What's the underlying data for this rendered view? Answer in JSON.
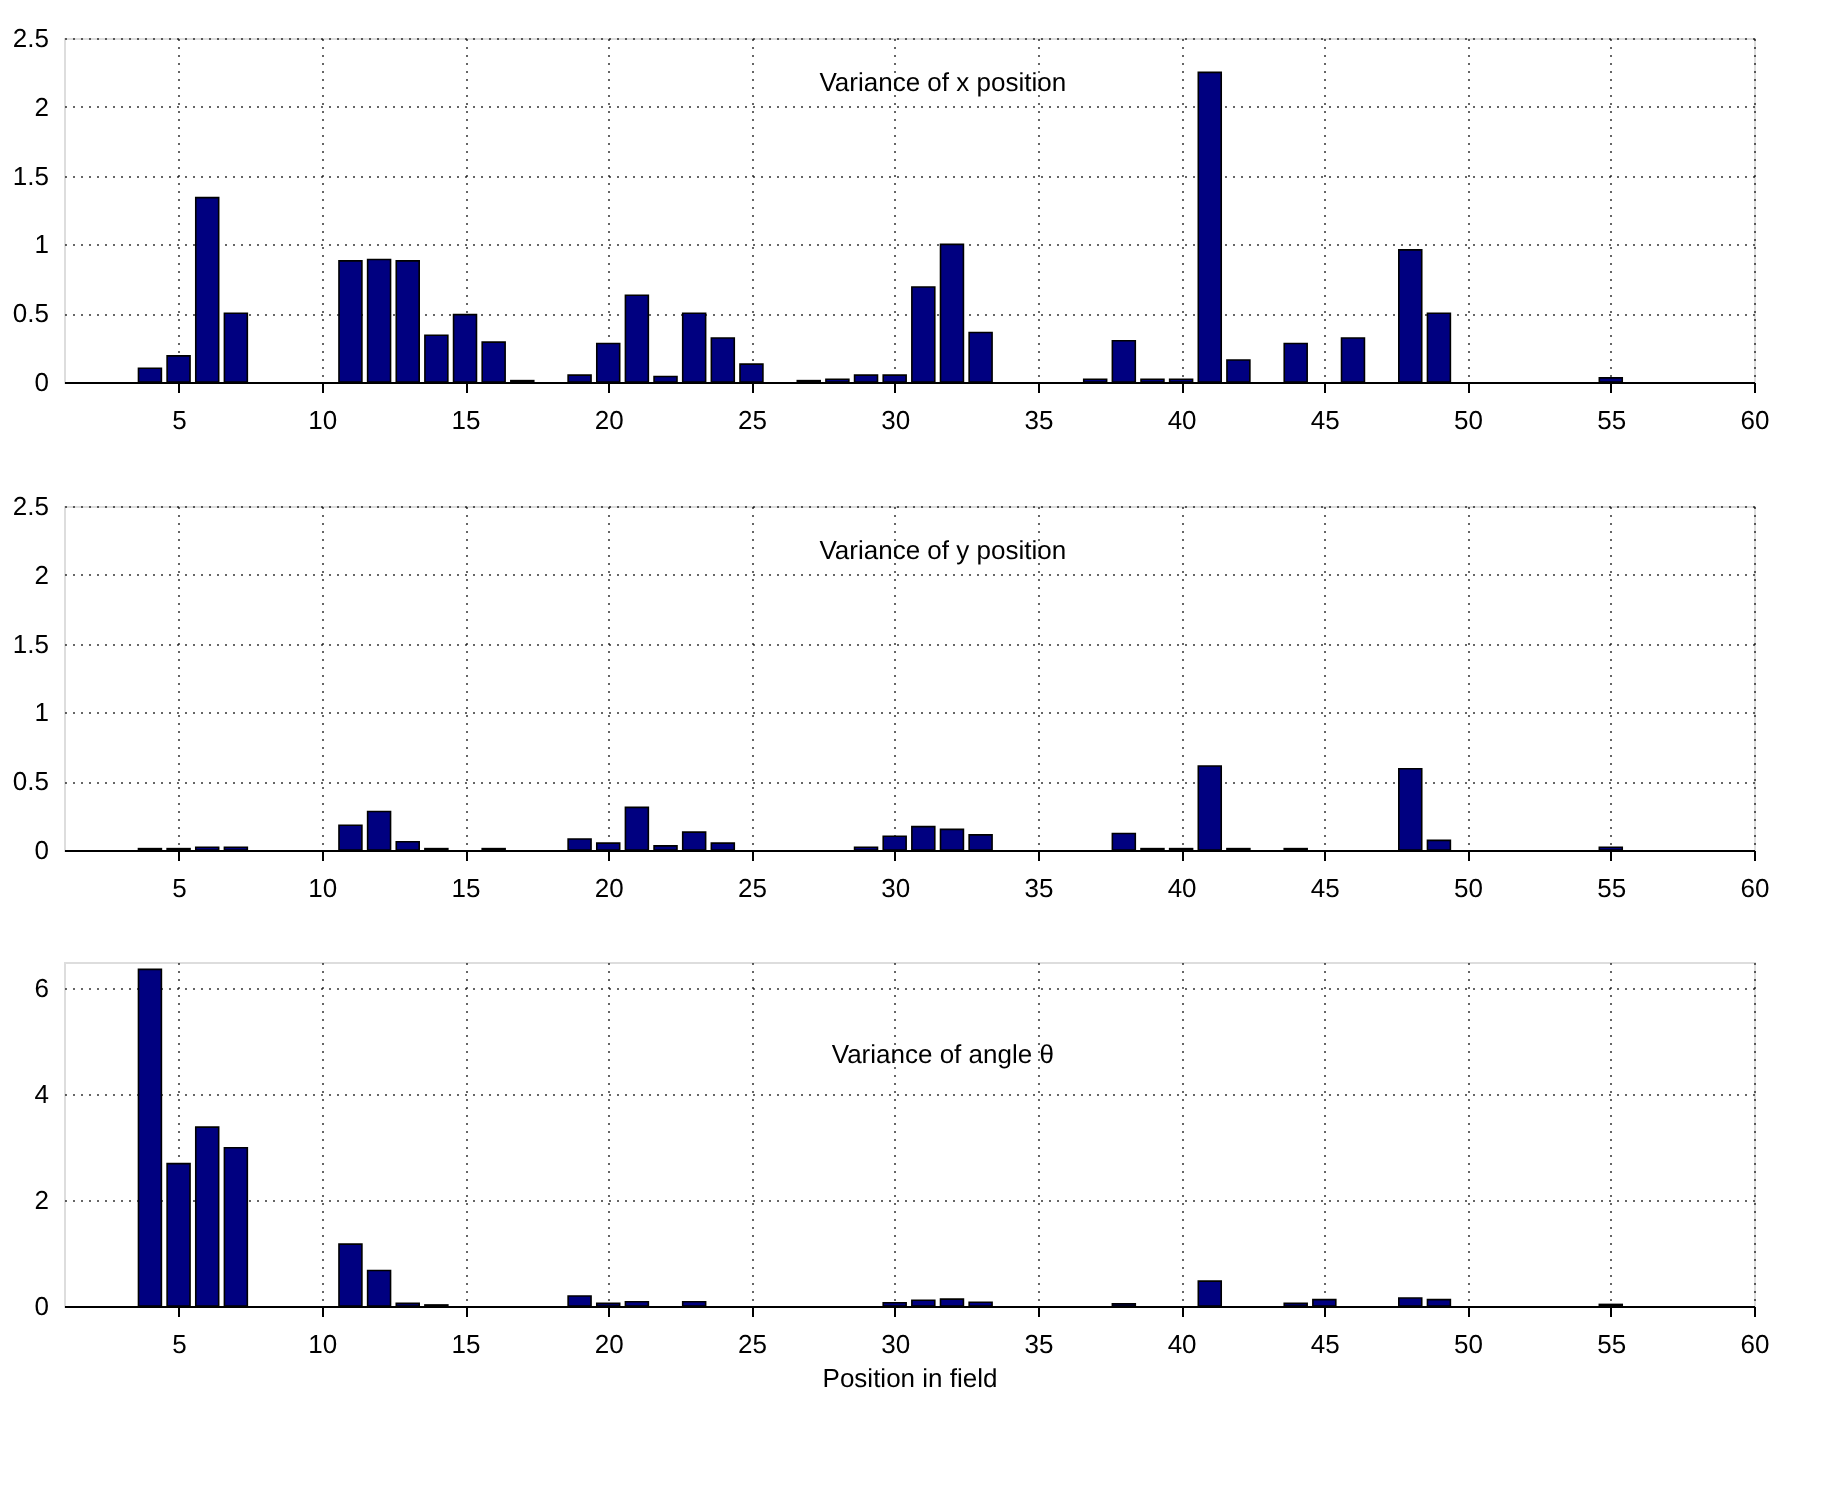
{
  "chart_data": [
    {
      "type": "bar",
      "title": "Variance of x position",
      "color": "#000080",
      "x": [
        4,
        5,
        6,
        7,
        8,
        9,
        10,
        11,
        12,
        13,
        14,
        15,
        16,
        17,
        18,
        19,
        20,
        21,
        22,
        23,
        24,
        25,
        26,
        27,
        28,
        29,
        30,
        31,
        32,
        33,
        34,
        35,
        36,
        37,
        38,
        39,
        40,
        41,
        42,
        43,
        44,
        45,
        46,
        47,
        48,
        49,
        50,
        51,
        52,
        53,
        54,
        55,
        56,
        57,
        58,
        59
      ],
      "values": [
        0.1,
        0.19,
        1.34,
        0.5,
        0,
        0,
        0,
        0.88,
        0.89,
        0.88,
        0.34,
        0.49,
        0.29,
        0.01,
        0,
        0.05,
        0.28,
        0.63,
        0.04,
        0.5,
        0.32,
        0.13,
        0,
        0.01,
        0.02,
        0.05,
        0.05,
        0.69,
        1.0,
        0.36,
        0,
        0,
        0,
        0.02,
        0.3,
        0.02,
        0.02,
        2.25,
        0.16,
        0,
        0.28,
        0,
        0.32,
        0,
        0.96,
        0.5,
        0,
        0,
        0,
        0,
        0,
        0.03,
        0,
        0,
        0,
        0
      ],
      "xlim": [
        1,
        60
      ],
      "xticks": [
        5,
        10,
        15,
        20,
        25,
        30,
        35,
        40,
        45,
        50,
        55,
        60
      ],
      "ylim": [
        0,
        2.5
      ],
      "yticks": [
        0,
        0.5,
        1,
        1.5,
        2,
        2.5
      ],
      "grid": true
    },
    {
      "type": "bar",
      "title": "Variance of y position",
      "color": "#000080",
      "x": [
        4,
        5,
        6,
        7,
        8,
        9,
        10,
        11,
        12,
        13,
        14,
        15,
        16,
        17,
        18,
        19,
        20,
        21,
        22,
        23,
        24,
        25,
        26,
        27,
        28,
        29,
        30,
        31,
        32,
        33,
        34,
        35,
        36,
        37,
        38,
        39,
        40,
        41,
        42,
        43,
        44,
        45,
        46,
        47,
        48,
        49,
        50,
        51,
        52,
        53,
        54,
        55,
        56,
        57,
        58,
        59
      ],
      "values": [
        0.01,
        0.01,
        0.02,
        0.02,
        0,
        0,
        0,
        0.18,
        0.28,
        0.06,
        0.01,
        0,
        0.01,
        0,
        0,
        0.08,
        0.05,
        0.31,
        0.03,
        0.13,
        0.05,
        0,
        0,
        0,
        0,
        0.02,
        0.1,
        0.17,
        0.15,
        0.11,
        0,
        0,
        0,
        0,
        0.12,
        0.01,
        0.01,
        0.61,
        0.01,
        0,
        0.01,
        0,
        0,
        0,
        0.59,
        0.07,
        0,
        0,
        0,
        0,
        0,
        0.02,
        0,
        0,
        0,
        0
      ],
      "xlim": [
        1,
        60
      ],
      "xticks": [
        5,
        10,
        15,
        20,
        25,
        30,
        35,
        40,
        45,
        50,
        55,
        60
      ],
      "ylim": [
        0,
        2.5
      ],
      "yticks": [
        0,
        0.5,
        1,
        1.5,
        2,
        2.5
      ],
      "grid": true
    },
    {
      "type": "bar",
      "title": "Variance of angle θ",
      "xlabel": "Position in field",
      "color": "#000080",
      "x": [
        4,
        5,
        6,
        7,
        8,
        9,
        10,
        11,
        12,
        13,
        14,
        15,
        16,
        17,
        18,
        19,
        20,
        21,
        22,
        23,
        24,
        25,
        26,
        27,
        28,
        29,
        30,
        31,
        32,
        33,
        34,
        35,
        36,
        37,
        38,
        39,
        40,
        41,
        42,
        43,
        44,
        45,
        46,
        47,
        48,
        49,
        50,
        51,
        52,
        53,
        54,
        55,
        56,
        57,
        58,
        59
      ],
      "values": [
        6.36,
        2.69,
        3.38,
        2.99,
        0,
        0,
        0,
        1.17,
        0.67,
        0.05,
        0.02,
        0,
        0,
        0,
        0,
        0.19,
        0.05,
        0.08,
        0,
        0.08,
        0,
        0,
        0,
        0,
        0,
        0,
        0.06,
        0.11,
        0.13,
        0.07,
        0,
        0,
        0,
        0,
        0.04,
        0,
        0,
        0.47,
        0,
        0,
        0.05,
        0.12,
        0,
        0,
        0.15,
        0.12,
        0,
        0,
        0,
        0,
        0,
        0.03,
        0,
        0,
        0,
        0
      ],
      "xlim": [
        1,
        60
      ],
      "xticks": [
        5,
        10,
        15,
        20,
        25,
        30,
        35,
        40,
        45,
        50,
        55,
        60
      ],
      "ylim": [
        0,
        6.5
      ],
      "yticks": [
        0,
        2,
        4,
        6
      ],
      "grid": true
    }
  ]
}
